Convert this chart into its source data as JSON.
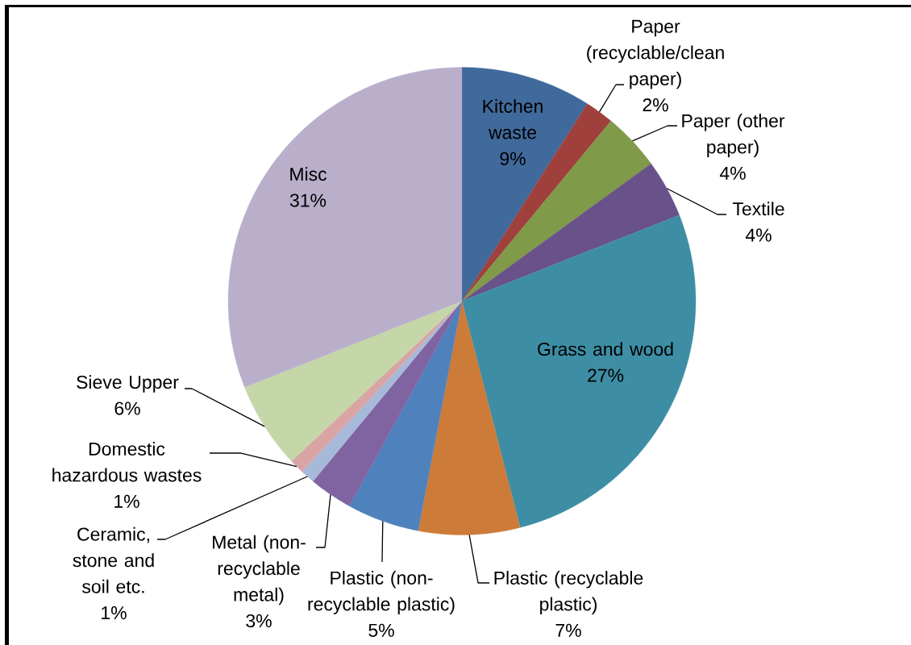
{
  "chart_data": {
    "type": "pie",
    "categories": [
      "Kitchen waste",
      "Paper (recyclable/clean paper)",
      "Paper (other paper)",
      "Textile",
      "Grass and wood",
      "Plastic (recyclable plastic)",
      "Plastic (non-recyclable plastic)",
      "Metal (non-recyclable metal)",
      "Ceramic, stone and soil etc.",
      "Domestic hazardous wastes",
      "Sieve Upper",
      "Misc"
    ],
    "values": [
      9,
      2,
      4,
      4,
      27,
      7,
      5,
      3,
      1,
      1,
      6,
      31
    ],
    "value_labels": [
      "9%",
      "2%",
      "4%",
      "4%",
      "27%",
      "7%",
      "5%",
      "3%",
      "1%",
      "1%",
      "6%",
      "31%"
    ],
    "colors": [
      "#416a9c",
      "#a0403d",
      "#7f9a48",
      "#69518a",
      "#3d8ea4",
      "#cd7b38",
      "#4f81bd",
      "#8064a2",
      "#a7b9d9",
      "#d9a5a4",
      "#c5d6a9",
      "#b9afcb"
    ]
  }
}
